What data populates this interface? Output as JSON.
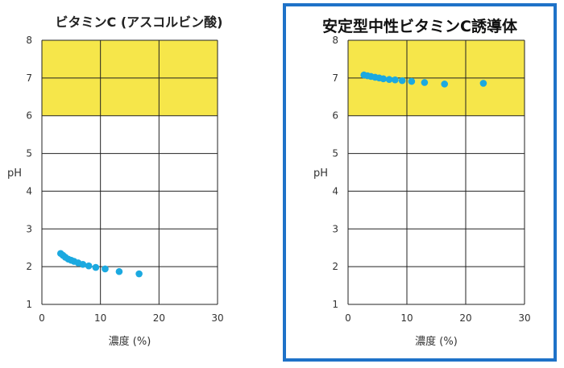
{
  "chart_data": [
    {
      "type": "scatter",
      "title": "ビタミンC (アスコルビン酸)",
      "xlabel": "濃度 (%)",
      "ylabel": "pH",
      "xlim": [
        0,
        30
      ],
      "ylim": [
        1,
        8
      ],
      "xticks": [
        "0",
        "10",
        "20",
        "30"
      ],
      "yticks": [
        "1",
        "2",
        "3",
        "4",
        "5",
        "6",
        "7",
        "8"
      ],
      "band": [
        6,
        8
      ],
      "grid": true,
      "series": [
        {
          "x": [
            3.2,
            3.6,
            4.0,
            4.5,
            5.0,
            5.5,
            6.2,
            7.0,
            8.0,
            9.2,
            10.8,
            13.2,
            16.6
          ],
          "y": [
            2.35,
            2.3,
            2.25,
            2.2,
            2.17,
            2.14,
            2.1,
            2.06,
            2.02,
            1.98,
            1.94,
            1.87,
            1.81
          ]
        }
      ],
      "colors": {
        "band": "#f6e64a",
        "marker": "#1ba9e0",
        "grid": "#222222"
      }
    },
    {
      "type": "scatter",
      "title": "安定型中性ビタミンC誘導体",
      "xlabel": "濃度 (%)",
      "ylabel": "pH",
      "xlim": [
        0,
        30
      ],
      "ylim": [
        1,
        8
      ],
      "xticks": [
        "0",
        "10",
        "20",
        "30"
      ],
      "yticks": [
        "1",
        "2",
        "3",
        "4",
        "5",
        "6",
        "7",
        "8"
      ],
      "band": [
        6,
        8
      ],
      "grid": true,
      "series": [
        {
          "x": [
            2.7,
            3.3,
            3.9,
            4.6,
            5.3,
            6.0,
            7.0,
            8.0,
            9.2,
            10.8,
            13.0,
            16.4,
            23.0
          ],
          "y": [
            7.08,
            7.06,
            7.04,
            7.02,
            7.0,
            6.98,
            6.96,
            6.95,
            6.93,
            6.91,
            6.88,
            6.84,
            6.86
          ]
        }
      ],
      "colors": {
        "band": "#f6e64a",
        "marker": "#1ba9e0",
        "grid": "#222222"
      }
    }
  ]
}
